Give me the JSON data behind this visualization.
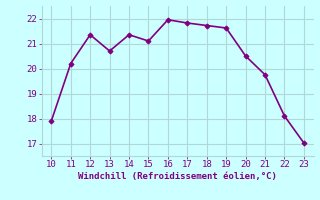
{
  "x": [
    10,
    11,
    12,
    13,
    14,
    15,
    16,
    17,
    18,
    19,
    20,
    21,
    22,
    23
  ],
  "y": [
    17.9,
    20.2,
    21.35,
    20.7,
    21.35,
    21.1,
    21.95,
    21.82,
    21.72,
    21.62,
    20.5,
    19.75,
    18.1,
    17.02
  ],
  "line_color": "#800080",
  "marker": "D",
  "bg_color": "#ccffff",
  "grid_color": "#b0d8d8",
  "xlabel": "Windchill (Refroidissement éolien,°C)",
  "xlim": [
    9.5,
    23.5
  ],
  "ylim": [
    16.5,
    22.5
  ],
  "xticks": [
    10,
    11,
    12,
    13,
    14,
    15,
    16,
    17,
    18,
    19,
    20,
    21,
    22,
    23
  ],
  "yticks": [
    17,
    18,
    19,
    20,
    21,
    22
  ],
  "xlabel_color": "#800080",
  "tick_color": "#800080",
  "label_fontsize": 6.5,
  "tick_fontsize": 6.5
}
